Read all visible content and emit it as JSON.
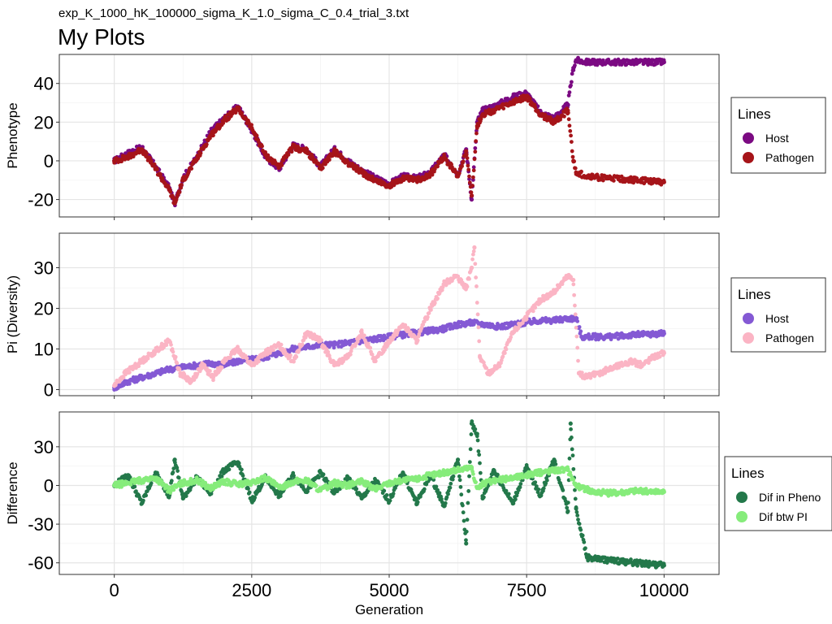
{
  "subtitle": "exp_K_1000_hK_100000_sigma_K_1.0_sigma_C_0.4_trial_3.txt",
  "title": "My Plots",
  "chart_data": [
    {
      "type": "scatter",
      "ylabel": "Phenotype",
      "xlabel": "",
      "xlim": [
        -1000,
        11000
      ],
      "ylim": [
        -29,
        55
      ],
      "xticks": [
        0,
        2500,
        5000,
        7500,
        10000
      ],
      "yticks": [
        -20,
        0,
        20,
        40
      ],
      "ytick_labels": [
        "-20",
        "0",
        "20",
        "40"
      ],
      "grid": true,
      "legend": {
        "title": "Lines",
        "position": "right"
      },
      "series": [
        {
          "name": "Host",
          "color": "#7b0a82",
          "x": [
            0,
            250,
            500,
            750,
            1000,
            1100,
            1250,
            1500,
            1750,
            2000,
            2250,
            2500,
            2750,
            3000,
            3250,
            3500,
            3750,
            4000,
            4250,
            4500,
            4750,
            5000,
            5250,
            5500,
            5750,
            6000,
            6250,
            6400,
            6500,
            6600,
            6700,
            6900,
            7250,
            7500,
            7750,
            8000,
            8250,
            8350,
            8400,
            8600,
            9000,
            9500,
            10000
          ],
          "y": [
            0,
            4,
            7,
            -3,
            -14,
            -22,
            -9,
            2,
            15,
            22,
            28,
            16,
            2,
            -4,
            8,
            6,
            -3,
            6,
            0,
            -5,
            -9,
            -12,
            -8,
            -9,
            -6,
            3,
            -7,
            6,
            -20,
            20,
            26,
            28,
            33,
            35,
            25,
            22,
            29,
            48,
            52,
            51,
            51,
            51,
            51
          ]
        },
        {
          "name": "Pathogen",
          "color": "#a61419",
          "x": [
            0,
            250,
            500,
            750,
            1000,
            1100,
            1250,
            1500,
            1750,
            2000,
            2250,
            2500,
            2750,
            3000,
            3250,
            3500,
            3750,
            4000,
            4250,
            4500,
            4750,
            5000,
            5250,
            5500,
            5750,
            6000,
            6250,
            6400,
            6500,
            6600,
            6700,
            6900,
            7250,
            7500,
            7750,
            8000,
            8250,
            8350,
            8400,
            8600,
            9000,
            9500,
            10000
          ],
          "y": [
            0,
            2,
            6,
            -4,
            -15,
            -22,
            -10,
            1,
            13,
            21,
            27,
            17,
            3,
            -3,
            7,
            5,
            -4,
            5,
            -1,
            -6,
            -10,
            -13,
            -9,
            -10,
            -7,
            2,
            -8,
            5,
            -18,
            18,
            24,
            26,
            30,
            33,
            24,
            20,
            26,
            0,
            -6,
            -8,
            -9,
            -10,
            -11
          ]
        }
      ]
    },
    {
      "type": "scatter",
      "ylabel": "Pi (Diversity)",
      "xlabel": "",
      "xlim": [
        -1000,
        11000
      ],
      "ylim": [
        -1.5,
        38.5
      ],
      "xticks": [
        0,
        2500,
        5000,
        7500,
        10000
      ],
      "yticks": [
        0,
        10,
        20,
        30
      ],
      "ytick_labels": [
        "0",
        "10",
        "20",
        "30"
      ],
      "grid": true,
      "legend": {
        "title": "Lines",
        "position": "right"
      },
      "series": [
        {
          "name": "Host",
          "color": "#8459d4",
          "x": [
            0,
            250,
            500,
            750,
            1000,
            1250,
            1500,
            1750,
            2000,
            2250,
            2500,
            2750,
            3000,
            3250,
            3500,
            3750,
            4000,
            4250,
            4500,
            4750,
            5000,
            5250,
            5500,
            5750,
            6000,
            6250,
            6500,
            6750,
            7000,
            7250,
            7500,
            7750,
            8000,
            8250,
            8400,
            8500,
            9000,
            9500,
            10000
          ],
          "y": [
            0.5,
            2,
            3,
            4,
            5,
            5.5,
            6,
            6.5,
            6,
            7,
            7.5,
            8,
            9,
            10,
            10.5,
            11,
            11,
            11.5,
            12,
            12.5,
            13,
            13.5,
            14,
            14.5,
            15,
            16,
            16.5,
            16,
            15.5,
            16,
            16.5,
            17,
            17,
            17.5,
            17.5,
            13,
            13,
            13.5,
            13.8
          ]
        },
        {
          "name": "Pathogen",
          "color": "#fbb4c4",
          "x": [
            0,
            200,
            400,
            600,
            800,
            1000,
            1200,
            1400,
            1600,
            1800,
            2000,
            2250,
            2500,
            2750,
            3000,
            3250,
            3500,
            3750,
            4000,
            4250,
            4500,
            4750,
            5000,
            5250,
            5500,
            5750,
            6000,
            6200,
            6400,
            6500,
            6550,
            6650,
            6800,
            7000,
            7250,
            7500,
            7750,
            8000,
            8250,
            8350,
            8450,
            8600,
            8800,
            9000,
            9200,
            9400,
            9600,
            9800,
            10000
          ],
          "y": [
            1,
            4,
            6,
            8,
            10,
            12,
            4,
            2,
            6,
            3,
            7,
            10,
            6,
            9,
            11,
            7,
            14,
            12,
            6,
            8,
            14,
            7,
            12,
            16,
            12,
            20,
            26,
            28,
            25,
            30,
            35,
            8,
            4,
            6,
            14,
            18,
            22,
            24,
            28,
            27,
            4,
            3,
            4,
            5,
            6,
            7,
            6,
            8,
            9
          ]
        }
      ]
    },
    {
      "type": "scatter",
      "ylabel": "Difference",
      "xlabel": "Generation",
      "xlim": [
        -1000,
        11000
      ],
      "ylim": [
        -69,
        57
      ],
      "xticks": [
        0,
        2500,
        5000,
        7500,
        10000
      ],
      "xtick_labels": [
        "0",
        "2500",
        "5000",
        "7500",
        "10000"
      ],
      "yticks": [
        -60,
        -30,
        0,
        30
      ],
      "ytick_labels": [
        "-60",
        "-30",
        "0",
        "30"
      ],
      "grid": true,
      "legend": {
        "title": "Lines",
        "position": "right"
      },
      "series": [
        {
          "name": "Dif in Pheno",
          "color": "#23784a",
          "x": [
            0,
            250,
            500,
            750,
            1000,
            1100,
            1250,
            1500,
            1750,
            2000,
            2250,
            2500,
            2750,
            3000,
            3250,
            3500,
            3750,
            4000,
            4250,
            4500,
            4750,
            5000,
            5250,
            5500,
            5750,
            6000,
            6250,
            6400,
            6500,
            6600,
            6700,
            6900,
            7250,
            7500,
            7750,
            8000,
            8250,
            8300,
            8400,
            8600,
            9000,
            9500,
            10000
          ],
          "y": [
            0,
            8,
            -14,
            10,
            -8,
            20,
            -10,
            6,
            -6,
            12,
            18,
            -12,
            6,
            -8,
            8,
            -4,
            10,
            -6,
            6,
            -10,
            4,
            -12,
            10,
            -14,
            8,
            -16,
            20,
            -45,
            48,
            40,
            -10,
            12,
            -14,
            14,
            -8,
            20,
            -20,
            48,
            -18,
            -56,
            -58,
            -60,
            -62
          ]
        },
        {
          "name": "Dif btw PI",
          "color": "#86ec7b",
          "x": [
            0,
            250,
            500,
            750,
            1000,
            1250,
            1500,
            1750,
            2000,
            2250,
            2500,
            2750,
            3000,
            3250,
            3500,
            3750,
            4000,
            4250,
            4500,
            4750,
            5000,
            5250,
            5500,
            5750,
            6000,
            6250,
            6500,
            6600,
            6750,
            7000,
            7250,
            7500,
            7750,
            8000,
            8250,
            8400,
            8500,
            8750,
            9000,
            9250,
            9500,
            9750,
            10000
          ],
          "y": [
            0,
            2,
            4,
            6,
            -4,
            2,
            4,
            -2,
            3,
            1,
            2,
            6,
            -2,
            3,
            4,
            -4,
            2,
            0,
            3,
            -3,
            2,
            4,
            5,
            8,
            10,
            12,
            14,
            -2,
            2,
            4,
            6,
            8,
            10,
            12,
            12,
            0,
            -2,
            -5,
            -6,
            -5,
            -4,
            -5,
            -5
          ]
        }
      ]
    }
  ]
}
